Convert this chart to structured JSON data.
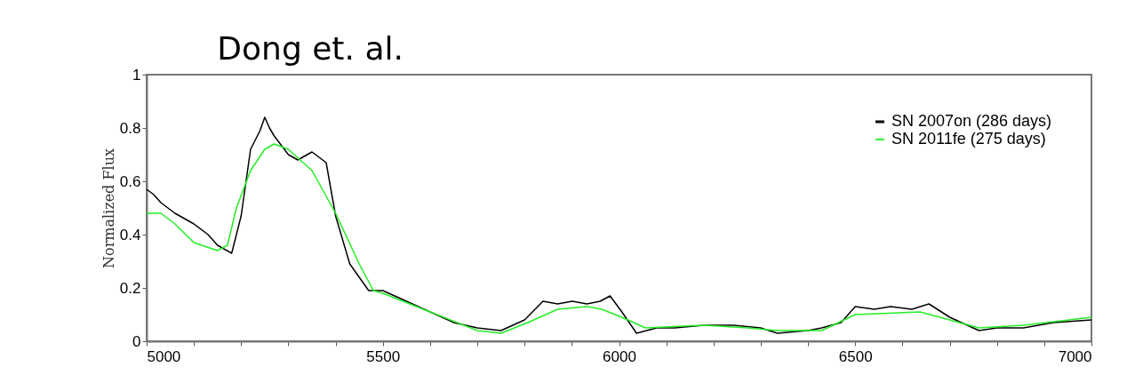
{
  "chart_data": {
    "type": "line",
    "title": "Dong et. al.",
    "ylabel": "Normalized Flux",
    "xlim": [
      5000,
      7000
    ],
    "xticks": [
      5000,
      {
        "value": 5100,
        "label": null
      },
      {
        "value": 5200,
        "label": null
      },
      {
        "value": 5300,
        "label": null
      },
      {
        "value": 5400,
        "label": null
      },
      5500,
      {
        "value": 5600,
        "label": null
      },
      {
        "value": 5700,
        "label": null
      },
      {
        "value": 5800,
        "label": null
      },
      {
        "value": 5900,
        "label": null
      },
      6000,
      {
        "value": 6100,
        "label": null
      },
      {
        "value": 6200,
        "label": null
      },
      {
        "value": 6300,
        "label": null
      },
      {
        "value": 6400,
        "label": null
      },
      6500,
      {
        "value": 6600,
        "label": null
      },
      {
        "value": 6700,
        "label": null
      },
      {
        "value": 6800,
        "label": null
      },
      {
        "value": 6900,
        "label": null
      },
      7000
    ],
    "ylim": [
      0,
      1
    ],
    "yticks": [
      0,
      0.2,
      0.4,
      0.6,
      0.8,
      1
    ],
    "legend": "top right",
    "grid": false,
    "marker": "none",
    "line_style": "solid",
    "series": [
      {
        "name": "SN 2007on (286 days)",
        "color": "#000000",
        "x": [
          5000,
          5015,
          5030,
          5060,
          5100,
          5130,
          5150,
          5180,
          5200,
          5220,
          5240,
          5250,
          5260,
          5270,
          5300,
          5320,
          5350,
          5380,
          5400,
          5430,
          5470,
          5500,
          5550,
          5600,
          5650,
          5700,
          5750,
          5800,
          5839,
          5870,
          5901,
          5932,
          5960,
          5981,
          6006,
          6037,
          6080,
          6118,
          6180,
          6242,
          6300,
          6335,
          6400,
          6429,
          6470,
          6500,
          6540,
          6575,
          6620,
          6656,
          6700,
          6762,
          6800,
          6856,
          6920,
          7000
        ],
        "values": [
          0.57,
          0.55,
          0.52,
          0.48,
          0.44,
          0.4,
          0.36,
          0.33,
          0.47,
          0.72,
          0.79,
          0.84,
          0.8,
          0.77,
          0.7,
          0.68,
          0.71,
          0.67,
          0.47,
          0.29,
          0.19,
          0.19,
          0.15,
          0.11,
          0.07,
          0.05,
          0.04,
          0.08,
          0.15,
          0.14,
          0.15,
          0.14,
          0.15,
          0.17,
          0.11,
          0.03,
          0.05,
          0.05,
          0.06,
          0.06,
          0.05,
          0.03,
          0.04,
          0.05,
          0.07,
          0.13,
          0.12,
          0.13,
          0.12,
          0.14,
          0.09,
          0.04,
          0.05,
          0.05,
          0.07,
          0.08
        ]
      },
      {
        "name": "SN 2011fe (275 days)",
        "color": "#22ee22",
        "x": [
          5000,
          5030,
          5060,
          5100,
          5150,
          5171,
          5190,
          5220,
          5250,
          5270,
          5300,
          5350,
          5400,
          5450,
          5480,
          5500,
          5600,
          5700,
          5750,
          5807,
          5870,
          5932,
          5963,
          6006,
          6056,
          6180,
          6273,
          6335,
          6429,
          6500,
          6637,
          6700,
          6762,
          6856,
          7000
        ],
        "values": [
          0.48,
          0.48,
          0.44,
          0.37,
          0.34,
          0.36,
          0.5,
          0.64,
          0.72,
          0.74,
          0.72,
          0.64,
          0.48,
          0.29,
          0.19,
          0.18,
          0.11,
          0.04,
          0.03,
          0.07,
          0.12,
          0.13,
          0.12,
          0.09,
          0.05,
          0.06,
          0.05,
          0.04,
          0.04,
          0.1,
          0.11,
          0.08,
          0.05,
          0.06,
          0.09
        ]
      }
    ]
  }
}
